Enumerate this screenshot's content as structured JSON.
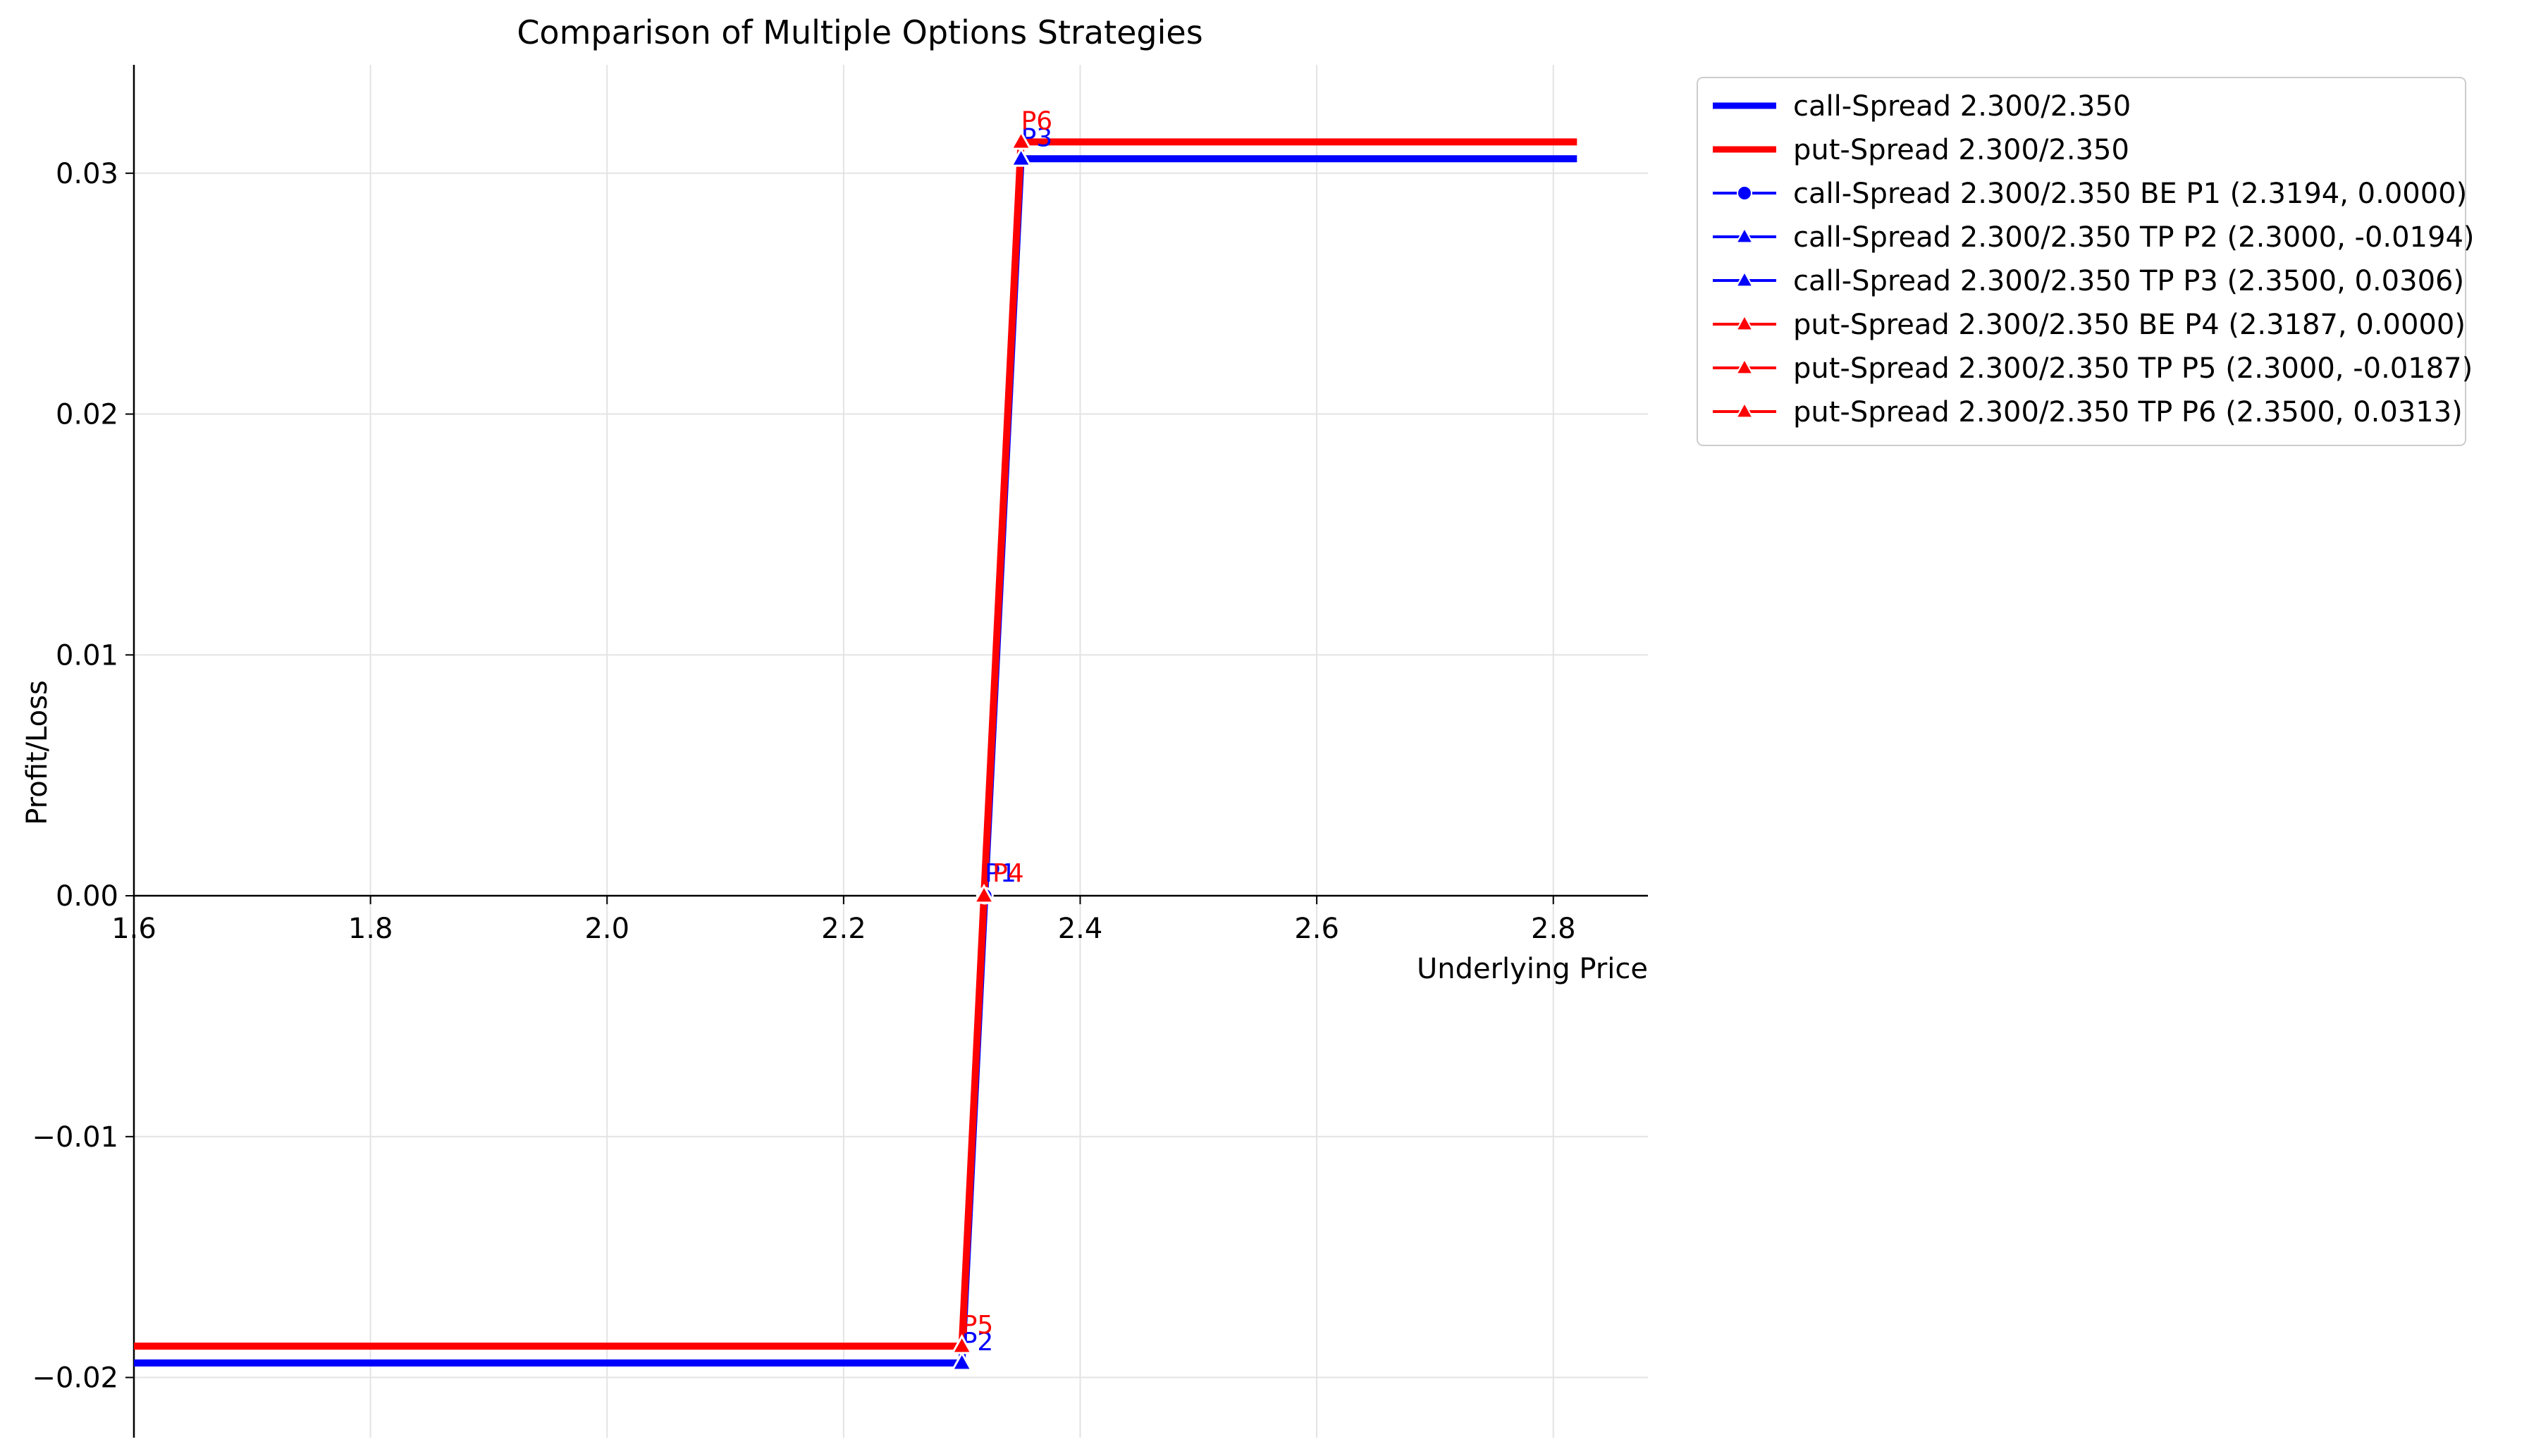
{
  "chart_data": {
    "type": "line",
    "title": "Comparison of Multiple Options Strategies",
    "xlabel": "Underlying Price",
    "ylabel": "Profit/Loss",
    "xlim": [
      1.6,
      2.88
    ],
    "ylim": [
      -0.0225,
      0.0345
    ],
    "xticks": [
      1.6,
      1.8,
      2.0,
      2.2,
      2.4,
      2.6,
      2.8
    ],
    "xtick_labels": [
      "1.6",
      "1.8",
      "2.0",
      "2.2",
      "2.4",
      "2.6",
      "2.8"
    ],
    "yticks": [
      -0.02,
      -0.01,
      0.0,
      0.01,
      0.02,
      0.03
    ],
    "ytick_labels": [
      "−0.02",
      "−0.01",
      "0.00",
      "0.01",
      "0.02",
      "0.03"
    ],
    "grid": true,
    "legend_position": "outside-top-right",
    "series": [
      {
        "name": "call-Spread 2.300/2.350",
        "color": "#0000ff",
        "x": [
          1.6,
          2.3,
          2.35,
          2.82
        ],
        "y": [
          -0.0194,
          -0.0194,
          0.0306,
          0.0306
        ]
      },
      {
        "name": "put-Spread 2.300/2.350",
        "color": "#ff0000",
        "x": [
          1.6,
          2.3,
          2.35,
          2.82
        ],
        "y": [
          -0.0187,
          -0.0187,
          0.0313,
          0.0313
        ]
      }
    ],
    "points": [
      {
        "name": "call-Spread 2.300/2.350 BE P1 (2.3194, 0.0000)",
        "label": "P1",
        "x": 2.3194,
        "y": 0.0,
        "color": "#0000ff",
        "marker": "circle"
      },
      {
        "name": "call-Spread 2.300/2.350 TP P2 (2.3000, -0.0194)",
        "label": "P2",
        "x": 2.3,
        "y": -0.0194,
        "color": "#0000ff",
        "marker": "triangle"
      },
      {
        "name": "call-Spread 2.300/2.350 TP P3 (2.3500, 0.0306)",
        "label": "P3",
        "x": 2.35,
        "y": 0.0306,
        "color": "#0000ff",
        "marker": "triangle"
      },
      {
        "name": "put-Spread 2.300/2.350 BE P4 (2.3187, 0.0000)",
        "label": "P4",
        "x": 2.3187,
        "y": 0.0,
        "color": "#ff0000",
        "marker": "triangle"
      },
      {
        "name": "put-Spread 2.300/2.350 TP P5 (2.3000, -0.0187)",
        "label": "P5",
        "x": 2.3,
        "y": -0.0187,
        "color": "#ff0000",
        "marker": "triangle"
      },
      {
        "name": "put-Spread 2.300/2.350 TP P6 (2.3500, 0.0313)",
        "label": "P6",
        "x": 2.35,
        "y": 0.0313,
        "color": "#ff0000",
        "marker": "triangle"
      }
    ]
  }
}
